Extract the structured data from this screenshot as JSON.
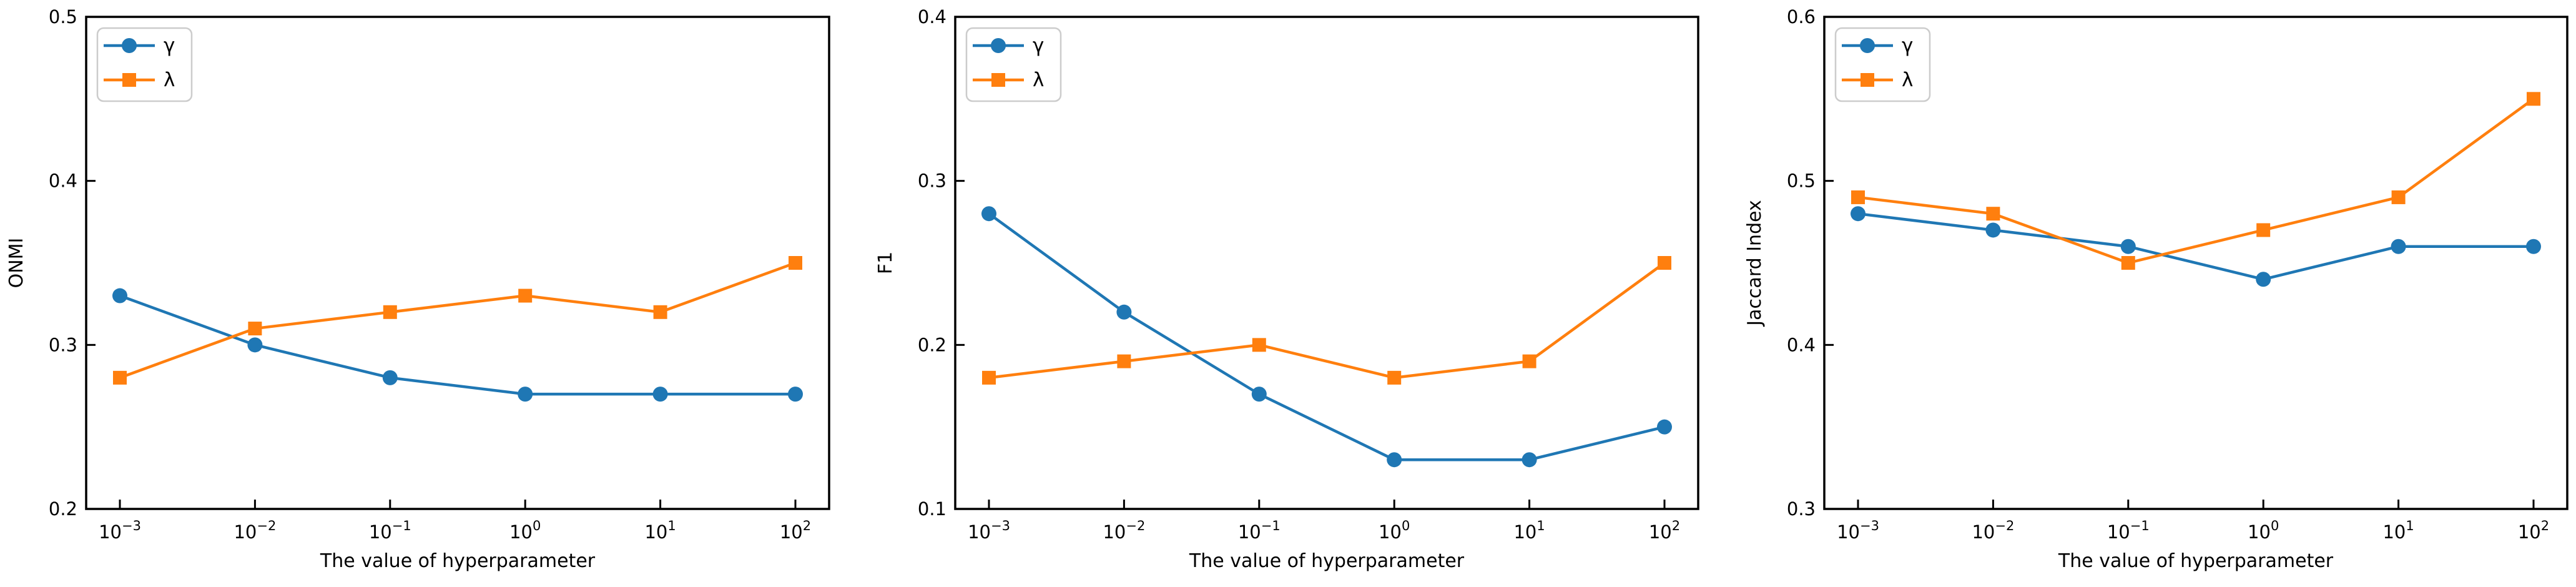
{
  "figure": {
    "background": "#ffffff",
    "axis_color": "#000000",
    "xlabel": "The value of hyperparameter",
    "x_scale": "log",
    "legend": {
      "position": "upper left",
      "entries": [
        {
          "id": "gamma",
          "label": "γ",
          "marker": "circle",
          "color": "#1f77b4"
        },
        {
          "id": "lambda",
          "label": "λ",
          "marker": "square",
          "color": "#ff7f0e"
        }
      ]
    }
  },
  "chart_data": [
    {
      "type": "line",
      "title": "",
      "xlabel": "The value of hyperparameter",
      "ylabel": "ONMI",
      "x_scale": "log",
      "x_values": [
        0.001,
        0.01,
        0.1,
        1,
        10,
        100
      ],
      "x_ticks": [
        {
          "base": "10",
          "exp": "−3"
        },
        {
          "base": "10",
          "exp": "−2"
        },
        {
          "base": "10",
          "exp": "−1"
        },
        {
          "base": "10",
          "exp": "0"
        },
        {
          "base": "10",
          "exp": "1"
        },
        {
          "base": "10",
          "exp": "2"
        }
      ],
      "ylim": [
        0.2,
        0.5
      ],
      "yticks": [
        "0.2",
        "0.3",
        "0.4",
        "0.5"
      ],
      "grid": false,
      "legend_position": "upper left",
      "series": [
        {
          "id": "gamma",
          "name": "γ",
          "marker": "circle",
          "color": "#1f77b4",
          "values": [
            0.33,
            0.3,
            0.28,
            0.27,
            0.27,
            0.27
          ]
        },
        {
          "id": "lambda",
          "name": "λ",
          "marker": "square",
          "color": "#ff7f0e",
          "values": [
            0.28,
            0.31,
            0.32,
            0.33,
            0.32,
            0.35
          ]
        }
      ]
    },
    {
      "type": "line",
      "title": "",
      "xlabel": "The value of hyperparameter",
      "ylabel": "F1",
      "x_scale": "log",
      "x_values": [
        0.001,
        0.01,
        0.1,
        1,
        10,
        100
      ],
      "x_ticks": [
        {
          "base": "10",
          "exp": "−3"
        },
        {
          "base": "10",
          "exp": "−2"
        },
        {
          "base": "10",
          "exp": "−1"
        },
        {
          "base": "10",
          "exp": "0"
        },
        {
          "base": "10",
          "exp": "1"
        },
        {
          "base": "10",
          "exp": "2"
        }
      ],
      "ylim": [
        0.1,
        0.4
      ],
      "yticks": [
        "0.1",
        "0.2",
        "0.3",
        "0.4"
      ],
      "grid": false,
      "legend_position": "upper left",
      "series": [
        {
          "id": "gamma",
          "name": "γ",
          "marker": "circle",
          "color": "#1f77b4",
          "values": [
            0.28,
            0.22,
            0.17,
            0.13,
            0.13,
            0.15
          ]
        },
        {
          "id": "lambda",
          "name": "λ",
          "marker": "square",
          "color": "#ff7f0e",
          "values": [
            0.18,
            0.19,
            0.2,
            0.18,
            0.19,
            0.25
          ]
        }
      ]
    },
    {
      "type": "line",
      "title": "",
      "xlabel": "The value of hyperparameter",
      "ylabel": "Jaccard Index",
      "x_scale": "log",
      "x_values": [
        0.001,
        0.01,
        0.1,
        1,
        10,
        100
      ],
      "x_ticks": [
        {
          "base": "10",
          "exp": "−3"
        },
        {
          "base": "10",
          "exp": "−2"
        },
        {
          "base": "10",
          "exp": "−1"
        },
        {
          "base": "10",
          "exp": "0"
        },
        {
          "base": "10",
          "exp": "1"
        },
        {
          "base": "10",
          "exp": "2"
        }
      ],
      "ylim": [
        0.3,
        0.6
      ],
      "yticks": [
        "0.3",
        "0.4",
        "0.5",
        "0.6"
      ],
      "grid": false,
      "legend_position": "upper left",
      "series": [
        {
          "id": "gamma",
          "name": "γ",
          "marker": "circle",
          "color": "#1f77b4",
          "values": [
            0.48,
            0.47,
            0.46,
            0.44,
            0.46,
            0.46
          ]
        },
        {
          "id": "lambda",
          "name": "λ",
          "marker": "square",
          "color": "#ff7f0e",
          "values": [
            0.49,
            0.48,
            0.45,
            0.47,
            0.49,
            0.55
          ]
        }
      ]
    }
  ]
}
